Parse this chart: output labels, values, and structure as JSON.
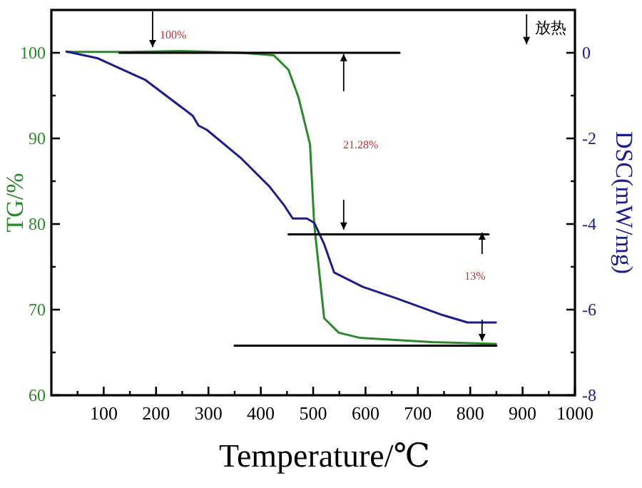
{
  "chart_data": {
    "type": "line",
    "xlabel": "Temperature/℃",
    "ylabel": "TG/%",
    "y2label": "DSC(mW/mg)",
    "xlim": [
      0,
      1000
    ],
    "xticks": [
      100,
      200,
      300,
      400,
      500,
      600,
      700,
      800,
      900,
      1000
    ],
    "ylim": [
      60,
      105
    ],
    "yticks": [
      60,
      70,
      80,
      90,
      100
    ],
    "y2lim": [
      -8,
      1
    ],
    "y2ticks": [
      -8,
      -6,
      -4,
      -2,
      0
    ],
    "series": [
      {
        "color": "#2a8a2a",
        "axis": "y",
        "x": [
          29,
          150,
          250,
          363,
          425,
          453,
          472,
          494,
          502,
          521,
          549,
          590,
          727,
          849
        ],
        "values": [
          100.1,
          100.1,
          100.2,
          100,
          99.7,
          98,
          94.8,
          89.3,
          80,
          69,
          67.3,
          66.7,
          66.2,
          66
        ]
      },
      {
        "color": "#1c1c8c",
        "axis": "y2",
        "x": [
          29,
          89,
          179,
          270,
          281,
          297,
          363,
          417,
          445,
          461,
          488,
          502,
          521,
          540,
          595,
          658,
          748,
          795,
          849
        ],
        "values": [
          0.03,
          -0.13,
          -0.63,
          -1.47,
          -1.7,
          -1.8,
          -2.47,
          -3.13,
          -3.57,
          -3.87,
          -3.87,
          -3.97,
          -4.47,
          -5.13,
          -5.47,
          -5.73,
          -6.13,
          -6.3,
          -6.3
        ]
      },
      {
        "color": "#000000",
        "axis": "y",
        "x": [
          130,
          665
        ],
        "values": [
          100,
          100
        ]
      },
      {
        "color": "#000000",
        "axis": "y",
        "x": [
          453,
          835
        ],
        "values": [
          78.8,
          78.8
        ]
      },
      {
        "color": "#000000",
        "axis": "y",
        "x": [
          350,
          850
        ],
        "values": [
          65.8,
          65.8
        ]
      }
    ],
    "annotations": [
      "100%",
      "21.28%",
      "13%",
      "放热"
    ]
  }
}
